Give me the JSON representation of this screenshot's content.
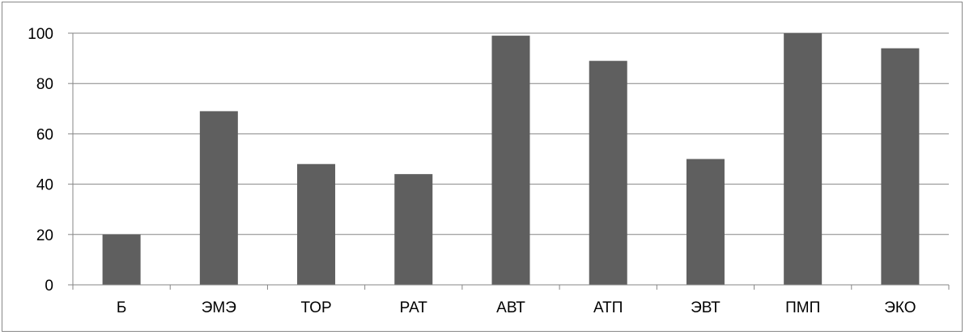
{
  "chart_data": {
    "type": "bar",
    "title": "",
    "xlabel": "",
    "ylabel": "",
    "categories": [
      "Б",
      "ЭМЭ",
      "ТОР",
      "РАТ",
      "АВТ",
      "АТП",
      "ЭВТ",
      "ПМП",
      "ЭКО"
    ],
    "values": [
      20,
      69,
      48,
      44,
      99,
      89,
      50,
      100,
      94
    ],
    "ylim": [
      0,
      100
    ],
    "yticks": [
      "0",
      "20",
      "40",
      "60",
      "80",
      "100"
    ],
    "grid": true,
    "legend": "none",
    "bar_color": "#5f5f5f",
    "grid_color": "#868686"
  }
}
